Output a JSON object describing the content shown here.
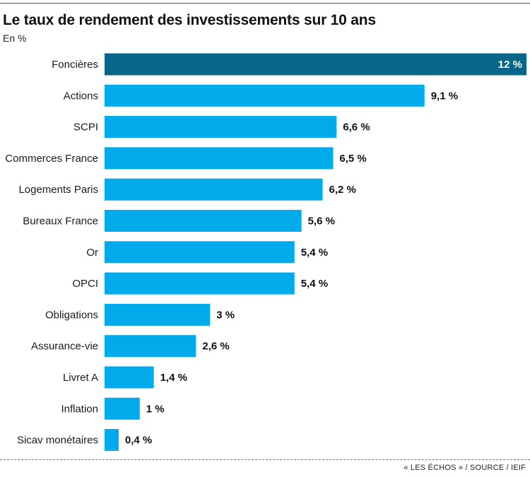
{
  "chart_data": {
    "type": "bar",
    "orientation": "horizontal",
    "title": "Le taux de rendement des investissements sur 10 ans",
    "subtitle": "En %",
    "categories": [
      "Foncières",
      "Actions",
      "SCPI",
      "Commerces France",
      "Logements Paris",
      "Bureaux France",
      "Or",
      "OPCI",
      "Obligations",
      "Assurance-vie",
      "Livret A",
      "Inflation",
      "Sicav monétaires"
    ],
    "values": [
      12,
      9.1,
      6.6,
      6.5,
      6.2,
      5.6,
      5.4,
      5.4,
      3,
      2.6,
      1.4,
      1,
      0.4
    ],
    "value_labels": [
      "12 %",
      "9,1 %",
      "6,6 %",
      "6,5 %",
      "6,2 %",
      "5,6 %",
      "5,4 %",
      "5,4 %",
      "3 %",
      "2,6 %",
      "1,4 %",
      "1 %",
      "0,4 %"
    ],
    "highlight_index": 0,
    "xlim": [
      0,
      12
    ],
    "grid": false,
    "legend": "none",
    "colors": {
      "bar": "#00aaeb",
      "highlight": "#07668a"
    }
  },
  "source": "« LES ÉCHOS » / SOURCE / IEIF"
}
